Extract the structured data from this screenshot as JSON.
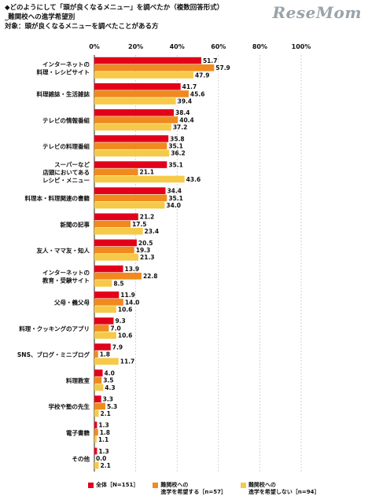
{
  "header": {
    "line1": "◆どのようにして「頭が良くなるメニュー」を調べたか（複数回答形式）",
    "line2": "_難関校への進学希望別",
    "line3": "対象：頭が良くなるメニューを調べたことがある方"
  },
  "watermark": "ReseMom",
  "colors": {
    "all": "#e3001b",
    "hope": "#f08a1e",
    "nohope": "#f7c948",
    "grid": "#bfbfbf",
    "axis": "#222222"
  },
  "chart_data": {
    "type": "bar",
    "orientation": "horizontal",
    "xlim": [
      0,
      100
    ],
    "xticks": [
      "0%",
      "20%",
      "40%",
      "60%",
      "80%",
      "100%"
    ],
    "categories": [
      "インターネットの\n料理・レシピサイト",
      "料理雑誌・生活雑誌",
      "テレビの情報番組",
      "テレビの料理番組",
      "スーパーなど\n店頭においてある\nレシピ・メニュー",
      "料理本・料理関連の書籍",
      "新聞の記事",
      "友人・ママ友・知人",
      "インターネットの\n教育・受験サイト",
      "父母・義父母",
      "料理・クッキングのアプリ",
      "SNS、ブログ・ミニブログ",
      "料理教室",
      "学校や塾の先生",
      "電子書籍",
      "その他"
    ],
    "series": [
      {
        "name": "全体［N=151］",
        "color": "#e3001b",
        "values": [
          51.7,
          41.7,
          38.4,
          35.8,
          35.1,
          34.4,
          21.2,
          20.5,
          13.9,
          11.9,
          9.3,
          7.9,
          4.0,
          3.3,
          1.3,
          1.3
        ]
      },
      {
        "name": "難関校への\n進学を希望する［n=57］",
        "color": "#f08a1e",
        "values": [
          57.9,
          45.6,
          40.4,
          35.1,
          21.1,
          35.1,
          17.5,
          19.3,
          22.8,
          14.0,
          7.0,
          1.8,
          3.5,
          5.3,
          1.8,
          0.0
        ]
      },
      {
        "name": "難関校への\n進学を希望しない［n=94］",
        "color": "#f7c948",
        "values": [
          47.9,
          39.4,
          37.2,
          36.2,
          43.6,
          34.0,
          23.4,
          21.3,
          8.5,
          10.6,
          10.6,
          11.7,
          4.3,
          2.1,
          1.1,
          2.1
        ]
      }
    ],
    "legend_position": "bottom",
    "grid": "vertical"
  }
}
